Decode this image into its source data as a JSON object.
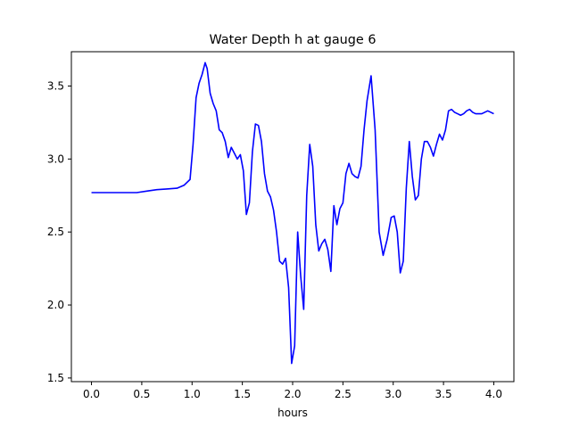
{
  "chart_data": {
    "type": "line",
    "title": "Water Depth h at gauge 6",
    "xlabel": "hours",
    "ylabel": "",
    "xlim": [
      -0.2,
      4.2
    ],
    "ylim": [
      1.475,
      3.735
    ],
    "xticks": [
      0.0,
      0.5,
      1.0,
      1.5,
      2.0,
      2.5,
      3.0,
      3.5,
      4.0
    ],
    "xtick_labels": [
      "0.0",
      "0.5",
      "1.0",
      "1.5",
      "2.0",
      "2.5",
      "3.0",
      "3.5",
      "4.0"
    ],
    "yticks": [
      1.5,
      2.0,
      2.5,
      3.0,
      3.5
    ],
    "ytick_labels": [
      "1.5",
      "2.0",
      "2.5",
      "3.0",
      "3.5"
    ],
    "grid": false,
    "series": [
      {
        "color": "#0000ff",
        "x": [
          0.0,
          0.25,
          0.45,
          0.55,
          0.65,
          0.75,
          0.85,
          0.92,
          0.98,
          1.01,
          1.04,
          1.07,
          1.1,
          1.13,
          1.15,
          1.18,
          1.21,
          1.24,
          1.27,
          1.3,
          1.33,
          1.36,
          1.39,
          1.42,
          1.45,
          1.48,
          1.51,
          1.54,
          1.57,
          1.6,
          1.63,
          1.66,
          1.69,
          1.72,
          1.75,
          1.78,
          1.81,
          1.84,
          1.87,
          1.9,
          1.93,
          1.96,
          1.99,
          2.02,
          2.05,
          2.08,
          2.11,
          2.14,
          2.17,
          2.2,
          2.23,
          2.26,
          2.29,
          2.32,
          2.35,
          2.38,
          2.41,
          2.44,
          2.47,
          2.5,
          2.53,
          2.56,
          2.59,
          2.62,
          2.65,
          2.68,
          2.71,
          2.74,
          2.78,
          2.82,
          2.86,
          2.9,
          2.94,
          2.98,
          3.01,
          3.04,
          3.07,
          3.1,
          3.13,
          3.16,
          3.19,
          3.22,
          3.25,
          3.28,
          3.31,
          3.34,
          3.37,
          3.4,
          3.43,
          3.46,
          3.49,
          3.52,
          3.55,
          3.58,
          3.61,
          3.64,
          3.67,
          3.7,
          3.73,
          3.76,
          3.79,
          3.82,
          3.85,
          3.88,
          3.91,
          3.94,
          3.97,
          4.0
        ],
        "y": [
          2.77,
          2.77,
          2.77,
          2.78,
          2.79,
          2.795,
          2.8,
          2.82,
          2.86,
          3.1,
          3.42,
          3.52,
          3.58,
          3.66,
          3.62,
          3.45,
          3.38,
          3.33,
          3.2,
          3.18,
          3.12,
          3.01,
          3.08,
          3.04,
          3.0,
          3.03,
          2.92,
          2.62,
          2.7,
          3.05,
          3.24,
          3.23,
          3.12,
          2.9,
          2.78,
          2.74,
          2.65,
          2.5,
          2.3,
          2.28,
          2.32,
          2.12,
          1.6,
          1.72,
          2.5,
          2.2,
          1.97,
          2.75,
          3.1,
          2.95,
          2.55,
          2.37,
          2.42,
          2.45,
          2.38,
          2.23,
          2.68,
          2.55,
          2.66,
          2.7,
          2.9,
          2.97,
          2.9,
          2.88,
          2.87,
          2.95,
          3.2,
          3.4,
          3.57,
          3.2,
          2.5,
          2.34,
          2.45,
          2.6,
          2.61,
          2.5,
          2.22,
          2.3,
          2.8,
          3.12,
          2.88,
          2.72,
          2.75,
          3.0,
          3.12,
          3.12,
          3.08,
          3.02,
          3.1,
          3.17,
          3.13,
          3.2,
          3.33,
          3.34,
          3.32,
          3.31,
          3.3,
          3.31,
          3.33,
          3.34,
          3.32,
          3.31,
          3.31,
          3.31,
          3.32,
          3.33,
          3.32,
          3.31
        ]
      }
    ]
  }
}
